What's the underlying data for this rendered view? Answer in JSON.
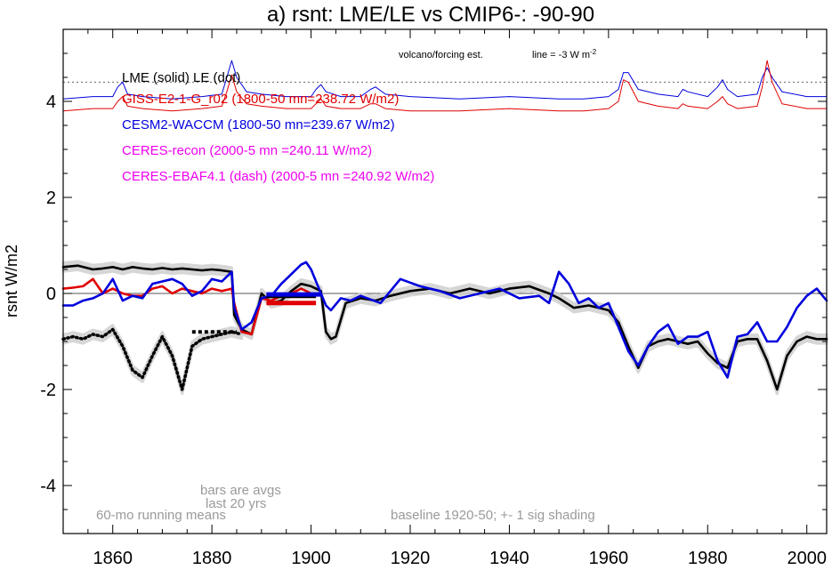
{
  "chart_data": {
    "type": "line",
    "title": "a) rsnt: LME/LE vs CMIP6-: -90-90",
    "ylabel": "rsnt W/m2",
    "xlabel": "",
    "xlim": [
      1850,
      2004
    ],
    "ylim": [
      -5,
      5.5
    ],
    "x_ticks": [
      1860,
      1880,
      1900,
      1920,
      1940,
      1960,
      1980,
      2000
    ],
    "y_ticks": [
      -4,
      -2,
      0,
      2,
      4
    ],
    "grid": false,
    "legend_position": "top-left",
    "legend": [
      {
        "text": "LME (solid)   LE (dot)",
        "color": "#000000"
      },
      {
        "text": "GISS-E2-1-G_r02 (1800-50 mn=238.72 W/m2)",
        "color": "#e00000"
      },
      {
        "text": "CESM2-WACCM (1800-50 mn=239.67 W/m2)",
        "color": "#0000dd"
      },
      {
        "text": "CERES-recon (2000-5 mn =240.11 W/m2)",
        "color": "#ee00ee"
      },
      {
        "text": "CERES-EBAF4.1 (dash) (2000-5 mn =240.92 W/m2)",
        "color": "#ee00ee"
      }
    ],
    "annotations": {
      "volcano_label": "volcano/forcing est.",
      "line_label": "line = -3 W m",
      "line_label_sup": "-2",
      "bars_1": "bars are avgs",
      "bars_2": "last 20 yrs",
      "running": "60-mo running means",
      "baseline": "baseline 1920-50; +- 1 sig shading"
    },
    "reference_lines": [
      {
        "name": "zero",
        "y": 0,
        "style": "solid"
      },
      {
        "name": "volcano-threshold",
        "y": 4.4,
        "style": "dotted"
      }
    ],
    "series": [
      {
        "name": "LME (solid)",
        "color": "#000000",
        "x": [
          1850,
          1853,
          1856,
          1858,
          1860,
          1862,
          1864,
          1866,
          1868,
          1870,
          1872,
          1874,
          1876,
          1878,
          1880,
          1882,
          1884,
          1884.5,
          1886,
          1888,
          1890,
          1892,
          1894,
          1896,
          1898,
          1900,
          1902,
          1903,
          1904,
          1905,
          1907,
          1910,
          1913,
          1916,
          1920,
          1924,
          1928,
          1932,
          1936,
          1940,
          1944,
          1948,
          1950,
          1953,
          1956,
          1960,
          1962,
          1964,
          1966,
          1968,
          1970,
          1972,
          1974,
          1976,
          1978,
          1980,
          1982,
          1984,
          1986,
          1988,
          1990,
          1992,
          1994,
          1996,
          1998,
          2000,
          2002,
          2004
        ],
        "y": [
          0.55,
          0.58,
          0.5,
          0.52,
          0.55,
          0.5,
          0.55,
          0.52,
          0.5,
          0.53,
          0.5,
          0.52,
          0.5,
          0.48,
          0.5,
          0.48,
          0.45,
          -0.45,
          -0.75,
          -0.85,
          0.0,
          -0.2,
          -0.15,
          0.05,
          0.2,
          0.15,
          0.05,
          -0.8,
          -0.95,
          -0.9,
          -0.2,
          -0.1,
          -0.15,
          -0.05,
          0.05,
          0.1,
          0.0,
          0.1,
          0.0,
          0.1,
          0.15,
          0.0,
          -0.1,
          -0.3,
          -0.25,
          -0.35,
          -0.6,
          -1.1,
          -1.55,
          -1.1,
          -1.0,
          -0.95,
          -1.0,
          -1.05,
          -1.0,
          -1.25,
          -1.45,
          -1.55,
          -1.0,
          -0.95,
          -0.95,
          -1.4,
          -2.0,
          -1.3,
          -1.0,
          -0.9,
          -0.95,
          -0.95
        ]
      },
      {
        "name": "LE (dot)",
        "color": "#000000",
        "dashed": true,
        "x": [
          1850,
          1852,
          1854,
          1856,
          1858,
          1860,
          1862,
          1864,
          1866,
          1868,
          1870,
          1872,
          1874,
          1876,
          1878,
          1880,
          1882,
          1884,
          1886
        ],
        "y": [
          -0.95,
          -0.9,
          -0.95,
          -0.85,
          -0.9,
          -0.75,
          -1.1,
          -1.6,
          -1.75,
          -1.3,
          -0.9,
          -1.3,
          -2.0,
          -1.1,
          -0.95,
          -0.9,
          -0.85,
          -0.8,
          -0.85
        ]
      },
      {
        "name": "GISS-E2-1-G_r02",
        "color": "#e00000",
        "x": [
          1850,
          1852,
          1854,
          1856,
          1858,
          1860,
          1862,
          1864,
          1866,
          1868,
          1870,
          1872,
          1874,
          1876,
          1878,
          1880,
          1882,
          1884,
          1884.5,
          1886,
          1888,
          1890,
          1892,
          1894,
          1896,
          1898,
          1900
        ],
        "y": [
          0.1,
          0.12,
          0.15,
          0.3,
          0.0,
          0.1,
          0.0,
          -0.05,
          -0.05,
          0.1,
          0.15,
          0.0,
          0.1,
          0.05,
          0.0,
          0.1,
          0.05,
          0.1,
          -0.2,
          -0.8,
          -0.85,
          -0.1,
          -0.15,
          -0.05,
          0.0,
          0.1,
          0.0
        ]
      },
      {
        "name": "CESM2-WACCM",
        "color": "#0000dd",
        "x": [
          1850,
          1852,
          1854,
          1856,
          1858,
          1860,
          1862,
          1864,
          1866,
          1868,
          1870,
          1872,
          1874,
          1876,
          1878,
          1880,
          1882,
          1884,
          1884.5,
          1886,
          1888,
          1890,
          1892,
          1894,
          1896,
          1898,
          1899,
          1900,
          1902,
          1903,
          1904,
          1906,
          1908,
          1910,
          1914,
          1918,
          1922,
          1926,
          1930,
          1934,
          1938,
          1942,
          1946,
          1948,
          1950,
          1952,
          1954,
          1956,
          1958,
          1960,
          1962,
          1964,
          1966,
          1968,
          1970,
          1972,
          1974,
          1976,
          1978,
          1980,
          1982,
          1984,
          1986,
          1988,
          1990,
          1992,
          1994,
          1996,
          1998,
          2000,
          2002,
          2004
        ],
        "y": [
          -0.25,
          -0.25,
          -0.15,
          -0.1,
          0.0,
          0.3,
          -0.15,
          -0.05,
          -0.1,
          0.2,
          0.25,
          0.3,
          0.2,
          -0.05,
          0.05,
          0.3,
          0.25,
          0.45,
          -0.3,
          -0.75,
          -0.6,
          -0.1,
          -0.05,
          0.2,
          0.4,
          0.6,
          0.65,
          0.5,
          0.0,
          -0.25,
          -0.35,
          -0.1,
          -0.15,
          -0.05,
          -0.2,
          0.3,
          0.15,
          0.05,
          -0.1,
          0.0,
          0.1,
          -0.1,
          -0.05,
          -0.2,
          0.45,
          0.2,
          -0.2,
          -0.1,
          -0.3,
          -0.2,
          -0.7,
          -1.2,
          -1.5,
          -1.1,
          -0.8,
          -0.65,
          -1.05,
          -0.9,
          -0.9,
          -0.8,
          -1.4,
          -1.75,
          -0.9,
          -0.85,
          -0.6,
          -1.0,
          -1.0,
          -0.7,
          -0.3,
          -0.05,
          0.1,
          -0.15
        ]
      },
      {
        "name": "CESM2-WACCM volcano/forcing est.",
        "color": "#0000dd",
        "x": [
          1850,
          1856,
          1860,
          1861,
          1862,
          1863,
          1866,
          1872,
          1878,
          1882,
          1883,
          1884,
          1885,
          1887,
          1890,
          1895,
          1900,
          1901,
          1902,
          1903,
          1906,
          1910,
          1912,
          1913,
          1915,
          1920,
          1930,
          1940,
          1950,
          1955,
          1960,
          1962,
          1963,
          1964,
          1966,
          1970,
          1974,
          1975,
          1976,
          1980,
          1982,
          1983,
          1984,
          1986,
          1990,
          1991,
          1992,
          1993,
          1995,
          2000,
          2004
        ],
        "y": [
          4.05,
          4.1,
          4.1,
          4.3,
          4.4,
          4.15,
          4.1,
          4.05,
          4.1,
          4.15,
          4.5,
          4.85,
          4.5,
          4.2,
          4.15,
          4.1,
          4.1,
          4.25,
          4.35,
          4.2,
          4.1,
          4.1,
          4.25,
          4.3,
          4.15,
          4.1,
          4.05,
          4.1,
          4.05,
          4.05,
          4.1,
          4.25,
          4.6,
          4.6,
          4.25,
          4.15,
          4.1,
          4.25,
          4.2,
          4.1,
          4.3,
          4.45,
          4.25,
          4.1,
          4.15,
          4.5,
          4.7,
          4.5,
          4.2,
          4.1,
          4.1
        ]
      },
      {
        "name": "GISS volcano/forcing est.",
        "color": "#e00000",
        "x": [
          1850,
          1856,
          1860,
          1861,
          1862,
          1863,
          1866,
          1872,
          1878,
          1882,
          1883,
          1884,
          1885,
          1887,
          1890,
          1895,
          1900,
          1901,
          1902,
          1903,
          1906,
          1910,
          1912,
          1913,
          1915,
          1920,
          1930,
          1940,
          1950,
          1955,
          1960,
          1962,
          1963,
          1964,
          1966,
          1970,
          1974,
          1975,
          1976,
          1980,
          1982,
          1983,
          1984,
          1986,
          1990,
          1991,
          1992,
          1993,
          1995,
          2000,
          2004
        ],
        "y": [
          3.8,
          3.85,
          3.85,
          4.0,
          4.1,
          3.9,
          3.85,
          3.8,
          3.85,
          3.9,
          4.2,
          4.55,
          4.2,
          3.95,
          3.9,
          3.85,
          3.85,
          3.95,
          4.05,
          3.9,
          3.85,
          3.85,
          3.95,
          3.95,
          3.85,
          3.8,
          3.8,
          3.85,
          3.8,
          3.8,
          3.85,
          4.0,
          4.45,
          4.4,
          4.0,
          3.9,
          3.85,
          3.95,
          3.9,
          3.85,
          4.0,
          4.1,
          3.95,
          3.85,
          3.9,
          4.3,
          4.85,
          4.4,
          3.95,
          3.85,
          3.85
        ]
      }
    ],
    "bars": [
      {
        "name": "LME bar",
        "color": "#000000",
        "x0": 1876,
        "x1": 1885,
        "y": -0.8,
        "dashed": true
      },
      {
        "name": "LME last-20 bar",
        "color": "#000000",
        "x0": 1891,
        "x1": 1901,
        "y": -0.05
      },
      {
        "name": "CESM2 last-20 bar",
        "color": "#0000dd",
        "x0": 1891,
        "x1": 1902,
        "y": -0.02
      },
      {
        "name": "GISS last-20 bar",
        "color": "#e00000",
        "x0": 1891,
        "x1": 1901,
        "y": -0.2
      }
    ]
  }
}
